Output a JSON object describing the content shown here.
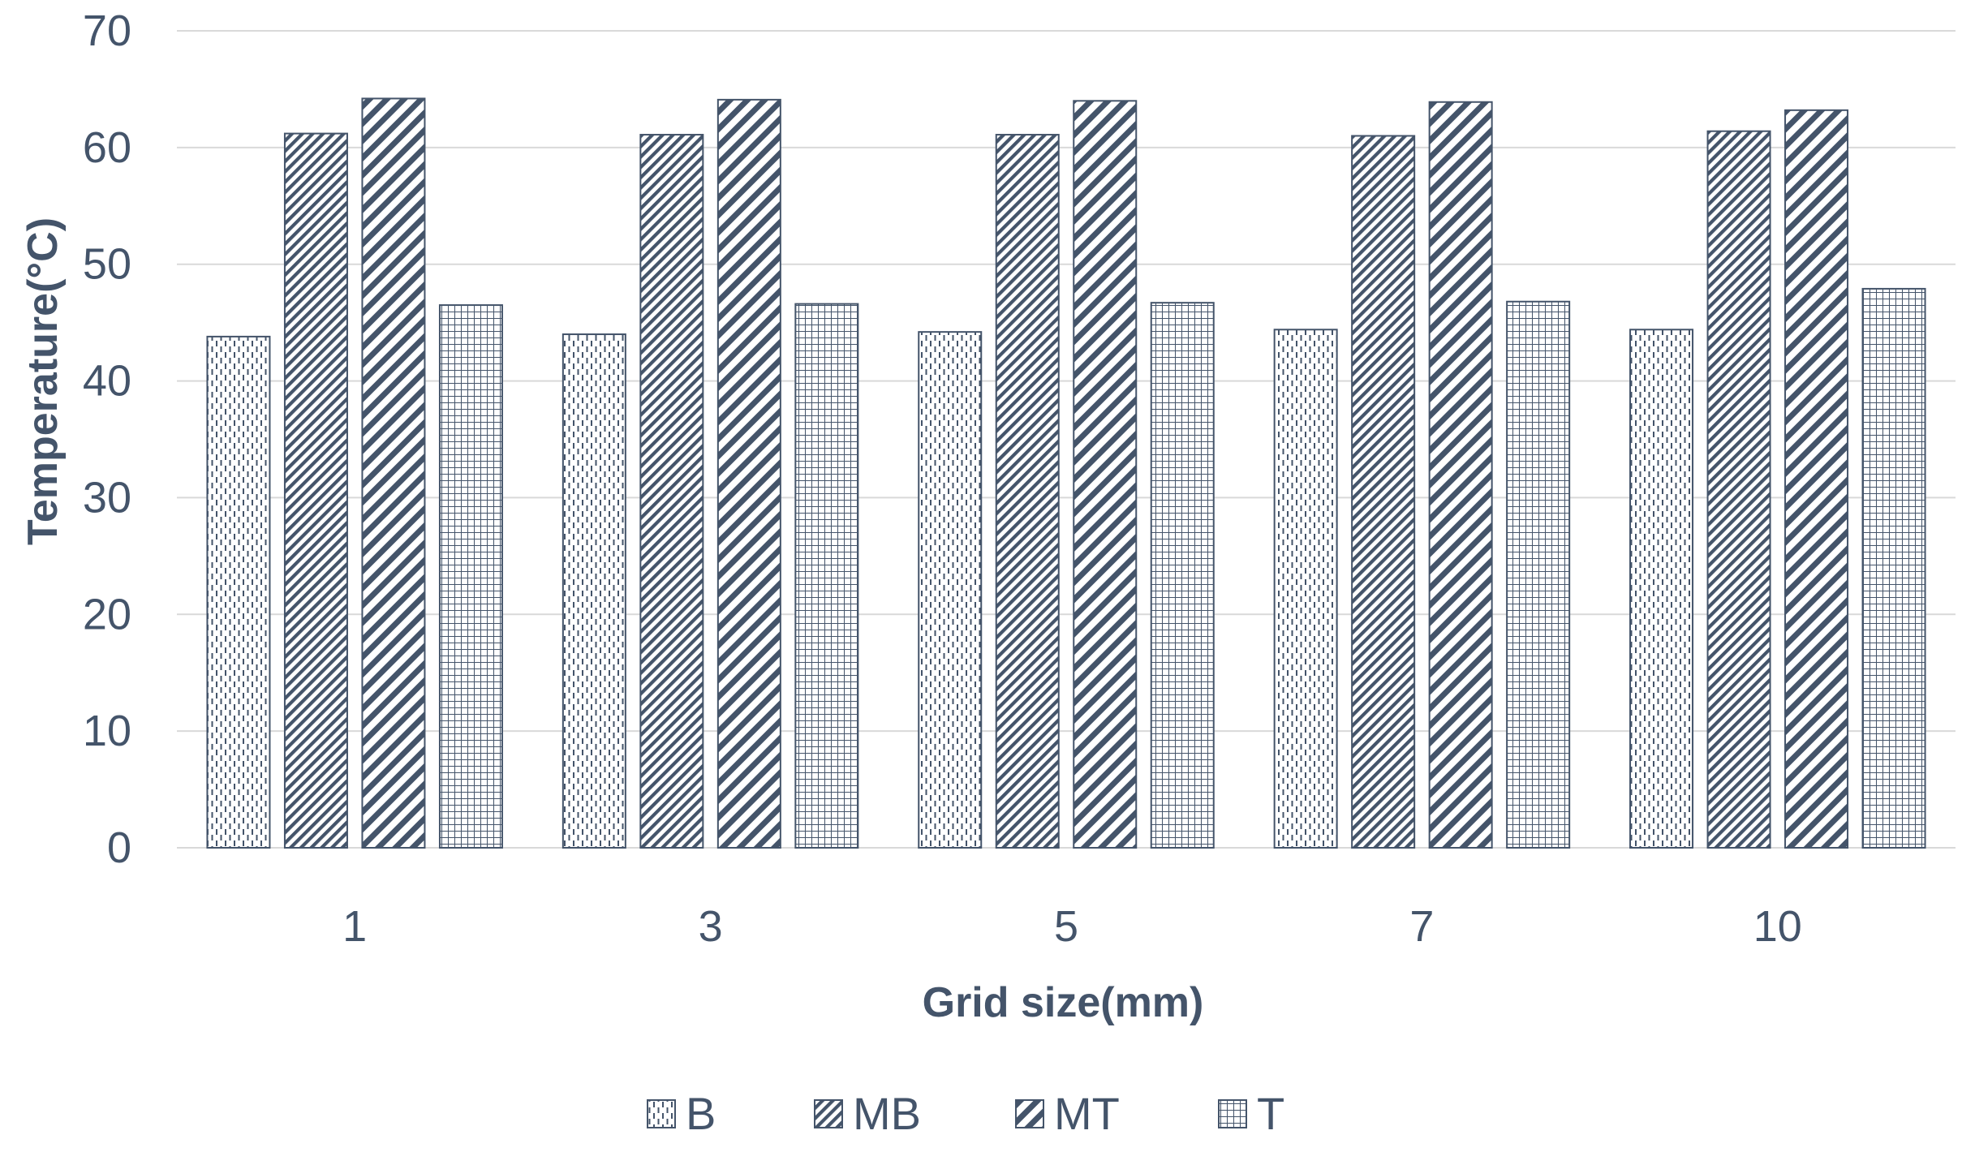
{
  "chart_data": {
    "type": "bar",
    "title": "",
    "xlabel": "Grid size(mm)",
    "ylabel": "Temperature(°C)",
    "ylim": [
      0,
      70
    ],
    "yticks": [
      0,
      10,
      20,
      30,
      40,
      50,
      60,
      70
    ],
    "grid": true,
    "legend_position": "bottom",
    "categories": [
      "1",
      "3",
      "5",
      "7",
      "10"
    ],
    "series": [
      {
        "name": "B",
        "values": [
          43.8,
          44.0,
          44.2,
          44.4,
          44.4
        ],
        "pattern": "dashed-vertical"
      },
      {
        "name": "MB",
        "values": [
          61.2,
          61.1,
          61.1,
          61.0,
          61.4
        ],
        "pattern": "fine-diagonal"
      },
      {
        "name": "MT",
        "values": [
          64.2,
          64.1,
          64.0,
          63.9,
          63.2
        ],
        "pattern": "wide-diagonal"
      },
      {
        "name": "T",
        "values": [
          46.5,
          46.6,
          46.7,
          46.8,
          47.9
        ],
        "pattern": "grid"
      }
    ],
    "colors": {
      "ink": "#44546A",
      "gridline": "#D9D9D9",
      "tick_text": "#44546A"
    }
  }
}
